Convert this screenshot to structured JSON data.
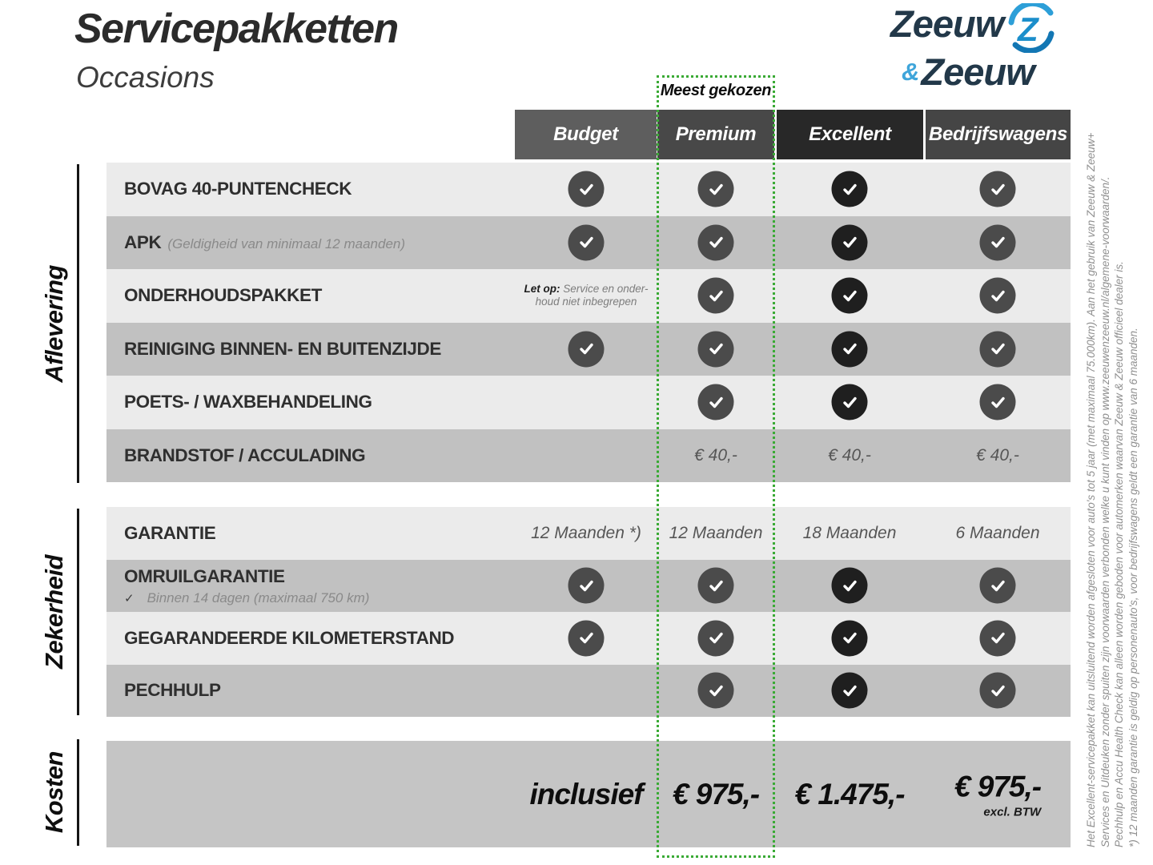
{
  "page": {
    "title": "Servicepakketten",
    "subtitle": "Occasions",
    "most_chosen": "Meest gekozen"
  },
  "logo": {
    "word1": "Zeeuw",
    "ampersand": "&",
    "word2": "Zeeuw"
  },
  "columns": [
    {
      "id": "budget",
      "label": "Budget",
      "header_color": "#5e5e5e"
    },
    {
      "id": "premium",
      "label": "Premium",
      "header_color": "#484848",
      "highlighted": true
    },
    {
      "id": "excellent",
      "label": "Excellent",
      "header_color": "#282828"
    },
    {
      "id": "bedrijfswagens",
      "label": "Bedrijfswagens",
      "header_color": "#454545"
    }
  ],
  "sections": [
    {
      "label": "Aflevering",
      "rows": [
        {
          "label": "BOVAG 40-PUNTENCHECK",
          "cells": [
            {
              "t": "check"
            },
            {
              "t": "check"
            },
            {
              "t": "check"
            },
            {
              "t": "check"
            }
          ]
        },
        {
          "label": "APK",
          "sublabel_inline": "(Geldigheid van minimaal 12 maanden)",
          "cells": [
            {
              "t": "check"
            },
            {
              "t": "check"
            },
            {
              "t": "check"
            },
            {
              "t": "check"
            }
          ]
        },
        {
          "label": "ONDERHOUDSPAKKET",
          "cells": [
            {
              "t": "note",
              "bold": "Let op:",
              "line1": "Service en onder-",
              "line2": "houd niet inbegrepen"
            },
            {
              "t": "check"
            },
            {
              "t": "check"
            },
            {
              "t": "check"
            }
          ]
        },
        {
          "label": "REINIGING BINNEN- EN BUITENZIJDE",
          "cells": [
            {
              "t": "check"
            },
            {
              "t": "check"
            },
            {
              "t": "check"
            },
            {
              "t": "check"
            }
          ]
        },
        {
          "label": "POETS- / WAXBEHANDELING",
          "cells": [
            {
              "t": "empty"
            },
            {
              "t": "check"
            },
            {
              "t": "check"
            },
            {
              "t": "check"
            }
          ]
        },
        {
          "label": "BRANDSTOF / ACCULADING",
          "cells": [
            {
              "t": "empty"
            },
            {
              "t": "text",
              "v": "€ 40,-"
            },
            {
              "t": "text",
              "v": "€ 40,-"
            },
            {
              "t": "text",
              "v": "€ 40,-"
            }
          ]
        }
      ]
    },
    {
      "label": "Zekerheid",
      "rows": [
        {
          "label": "GARANTIE",
          "cells": [
            {
              "t": "text",
              "v": "12 Maanden *)"
            },
            {
              "t": "text",
              "v": "12 Maanden"
            },
            {
              "t": "text",
              "v": "18 Maanden"
            },
            {
              "t": "text",
              "v": "6 Maanden"
            }
          ]
        },
        {
          "label": "OMRUILGARANTIE",
          "subnote_check": "✓",
          "subnote": "Binnen 14 dagen (maximaal 750 km)",
          "cells": [
            {
              "t": "check"
            },
            {
              "t": "check"
            },
            {
              "t": "check"
            },
            {
              "t": "check"
            }
          ]
        },
        {
          "label": "GEGARANDEERDE KILOMETERSTAND",
          "cells": [
            {
              "t": "check"
            },
            {
              "t": "check"
            },
            {
              "t": "check"
            },
            {
              "t": "check"
            }
          ]
        },
        {
          "label": "PECHHULP",
          "cells": [
            {
              "t": "empty"
            },
            {
              "t": "check"
            },
            {
              "t": "check"
            },
            {
              "t": "check"
            }
          ]
        }
      ]
    }
  ],
  "kosten": {
    "label": "Kosten",
    "values": [
      "inclusief",
      "€ 975,-",
      "€ 1.475,-",
      "€ 975,-"
    ],
    "value_note": "excl. BTW",
    "note_column_index": 3
  },
  "footnote_lines": [
    "Het Excellent-servicepakket kan uitsluitend worden afgesloten voor auto's tot 5 jaar (met maximaal 75.000km). Aan het gebruik van Zeeuw & Zeeuw+",
    "Services en Uitdeuken zonder spuiten zijn voorwaarden verbonden welke u kunt vinden op www.zeeuwenzeeuw.nl/algemene-voorwaarden/.",
    "Pechhulp en Accu Health Check kan alleen worden geboden voor automerken waarvan Zeeuw & Zeeuw officieel dealer is.",
    "*) 12 maanden garantie is geldig op personenauto's, voor bedrijfswagens geldt een garantie van 6 maanden."
  ],
  "theme": {
    "accent_green": "#3aaa35",
    "row_light": "#ebebeb",
    "row_dark": "#c1c1c1",
    "kosten_band": "#c5c5c5",
    "check_default": "#4b4b4b",
    "check_excellent": "#1f1f1f",
    "logo_navy": "#223849",
    "logo_blue": "#2d9fd8",
    "logo_lightblue": "#3fa5da"
  }
}
